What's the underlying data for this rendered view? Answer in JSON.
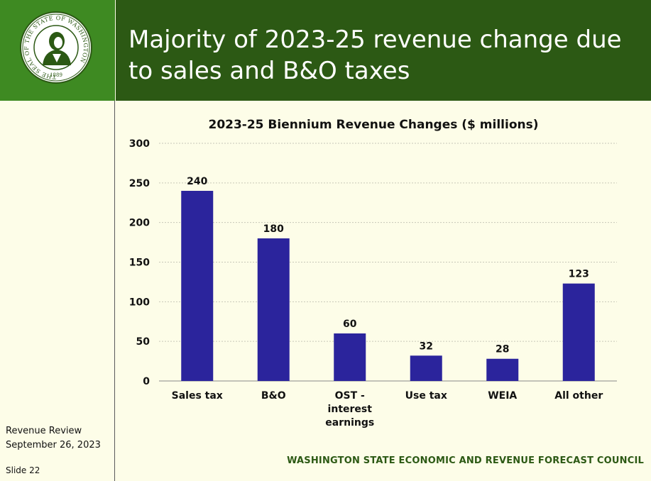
{
  "slide": {
    "title": "Majority of 2023-25 revenue change due to sales and B&O taxes",
    "seal_text": "THE SEAL OF THE STATE OF WASHINGTON",
    "seal_year": "1889",
    "footer_line1": "Revenue Review",
    "footer_line2": "September 26, 2023",
    "slide_number": "Slide 22",
    "council": "WASHINGTON STATE ECONOMIC AND REVENUE FORECAST COUNCIL"
  },
  "colors": {
    "bar": "#2b249c",
    "header_dark": "#2c5914",
    "header_light": "#3e8a22",
    "background": "#fdfde8"
  },
  "chart_data": {
    "type": "bar",
    "title": "2023-25 Biennium Revenue Changes ($ millions)",
    "categories": [
      [
        "Sales tax"
      ],
      [
        "B&O"
      ],
      [
        "OST -",
        "interest",
        "earnings"
      ],
      [
        "Use tax"
      ],
      [
        "WEIA"
      ],
      [
        "All other"
      ]
    ],
    "values": [
      240,
      180,
      60,
      32,
      28,
      123
    ],
    "ylim": [
      0,
      300
    ],
    "yticks": [
      0,
      50,
      100,
      150,
      200,
      250,
      300
    ],
    "grid": true,
    "legend": "none"
  }
}
